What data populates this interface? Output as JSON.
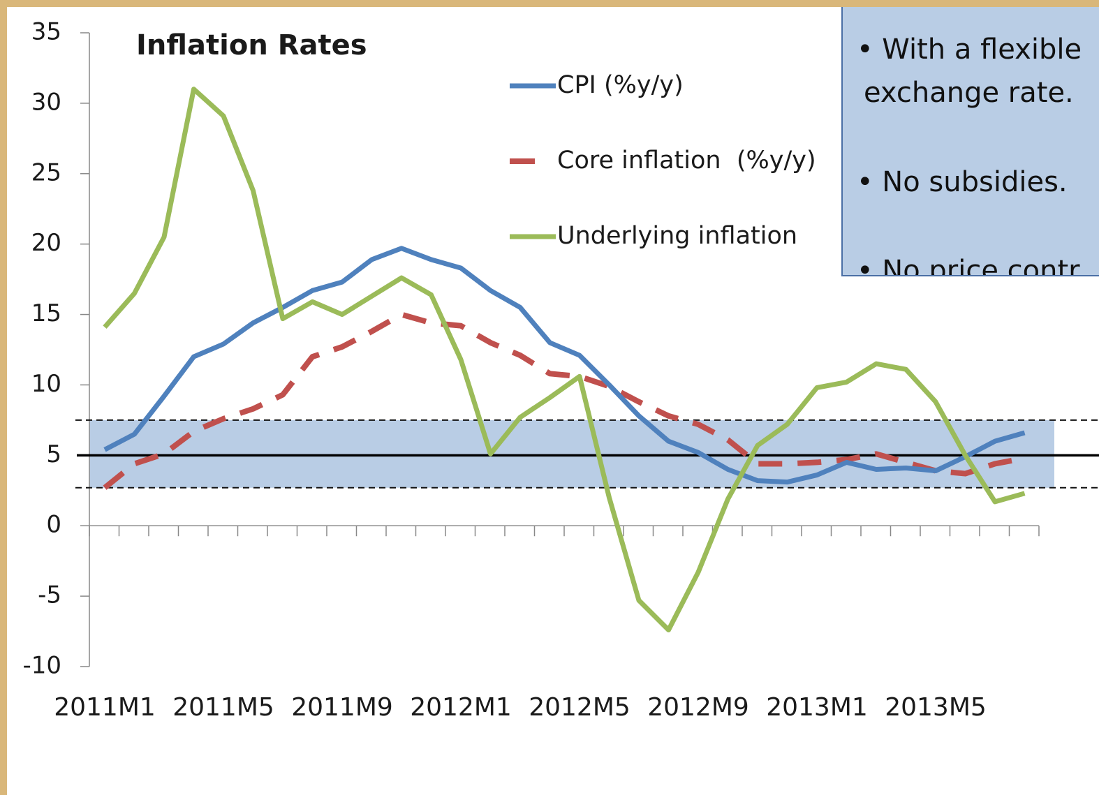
{
  "chart_data": {
    "type": "line",
    "title": "Inflation Rates",
    "categories": [
      "2011M1",
      null,
      null,
      null,
      "2011M5",
      null,
      null,
      null,
      "2011M9",
      null,
      null,
      null,
      "2012M1",
      null,
      null,
      null,
      "2012M5",
      null,
      null,
      null,
      "2012M9",
      null,
      null,
      null,
      "2013M1",
      null,
      null,
      null,
      "2013M5",
      null,
      null,
      null
    ],
    "series": [
      {
        "name": "CPI (%y/y)",
        "color": "#4f81bd",
        "dash": false,
        "values": [
          5.4,
          6.5,
          9.2,
          12,
          12.9,
          14.4,
          15.5,
          16.7,
          17.3,
          18.9,
          19.7,
          18.9,
          18.3,
          16.7,
          15.5,
          13,
          12.1,
          10,
          7.8,
          6,
          5.2,
          4,
          3.2,
          3.1,
          3.6,
          4.5,
          4,
          4.1,
          3.9,
          4.9,
          6,
          6.6
        ]
      },
      {
        "name": "Core inflation  (%y/y)",
        "color": "#c0504d",
        "dash": true,
        "values": [
          2.7,
          4.4,
          5.1,
          6.7,
          7.6,
          8.3,
          9.3,
          12,
          12.7,
          13.8,
          15,
          14.4,
          14.2,
          13,
          12.1,
          10.8,
          10.6,
          9.9,
          8.8,
          7.8,
          7.2,
          6.1,
          4.4,
          4.4,
          4.5,
          4.7,
          5.1,
          4.5,
          3.9,
          3.7,
          4.4,
          4.8
        ]
      },
      {
        "name": "Underlying inflation",
        "color": "#9bbb59",
        "dash": false,
        "values": [
          14.1,
          16.5,
          20.5,
          31,
          29.1,
          23.8,
          14.7,
          15.9,
          15,
          16.3,
          17.6,
          16.4,
          11.8,
          5.1,
          7.7,
          9.1,
          10.6,
          2,
          -5.3,
          -7.4,
          -3.3,
          1.9,
          5.7,
          7.2,
          9.8,
          10.2,
          11.5,
          11.1,
          8.8,
          5,
          1.7,
          2.3
        ]
      }
    ],
    "ylim": [
      -10,
      35
    ],
    "yticks": [
      -10,
      -5,
      0,
      5,
      10,
      15,
      20,
      25,
      30,
      35
    ],
    "target": 5,
    "band": [
      2.7,
      7.5
    ],
    "band_color": "#b9cde5"
  },
  "textbox": {
    "lines": [
      "• With a flexible",
      "exchange rate.",
      "• No subsidies.",
      "• No price contr"
    ]
  }
}
